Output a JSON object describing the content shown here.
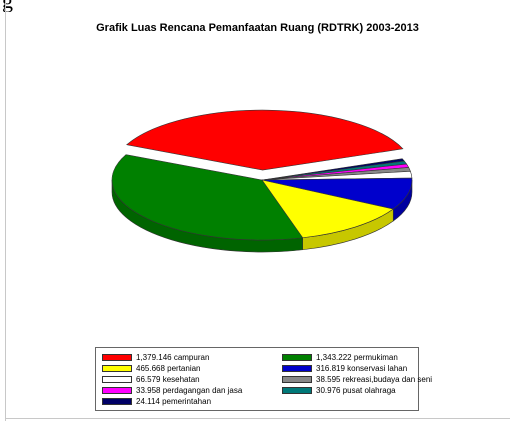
{
  "page": {
    "top_text": "g"
  },
  "chart_data": {
    "type": "pie",
    "title": "Grafik Luas Rencana Pemanfaatan Ruang (RDTRK) 2003-2013",
    "slices": [
      {
        "label": "campuran",
        "value_text": "1,379.146",
        "value": 1379.146,
        "color": "#ff0000",
        "exploded": true
      },
      {
        "label": "pemerintahan",
        "value_text": "24.114",
        "value": 24.114,
        "color": "#000066",
        "exploded": false
      },
      {
        "label": "pusat olahraga",
        "value_text": "30.976",
        "value": 30.976,
        "color": "#007878",
        "exploded": false
      },
      {
        "label": "perdagangan dan jasa",
        "value_text": "33.958",
        "value": 33.958,
        "color": "#ff00ff",
        "exploded": false
      },
      {
        "label": "rekreasi,budaya dan seni",
        "value_text": "38.595",
        "value": 38.595,
        "color": "#888888",
        "exploded": false
      },
      {
        "label": "kesehatan",
        "value_text": "66.579",
        "value": 66.579,
        "color": "#ffffff",
        "exploded": false
      },
      {
        "label": "konservasi lahan",
        "value_text": "316.819",
        "value": 316.819,
        "color": "#0000cc",
        "exploded": false
      },
      {
        "label": "pertanian",
        "value_text": "465.668",
        "value": 465.668,
        "color": "#ffff00",
        "exploded": false
      },
      {
        "label": "permukiman",
        "value_text": "1,343.222",
        "value": 1343.222,
        "color": "#008000",
        "exploded": false
      }
    ],
    "legend": [
      {
        "text": "1,379.146 campuran",
        "color": "#ff0000"
      },
      {
        "text": "1,343.222 permukiman",
        "color": "#008000"
      },
      {
        "text": "465.668 pertanian",
        "color": "#ffff00"
      },
      {
        "text": "316.819 konservasi lahan",
        "color": "#0000cc"
      },
      {
        "text": "66.579 kesehatan",
        "color": "#ffffff"
      },
      {
        "text": "38.595 rekreasi,budaya dan seni",
        "color": "#888888"
      },
      {
        "text": "33.958 perdagangan dan jasa",
        "color": "#ff00ff"
      },
      {
        "text": "30.976 pusat olahraga",
        "color": "#007878"
      },
      {
        "text": "24.114 pemerintahan",
        "color": "#000066"
      }
    ]
  }
}
